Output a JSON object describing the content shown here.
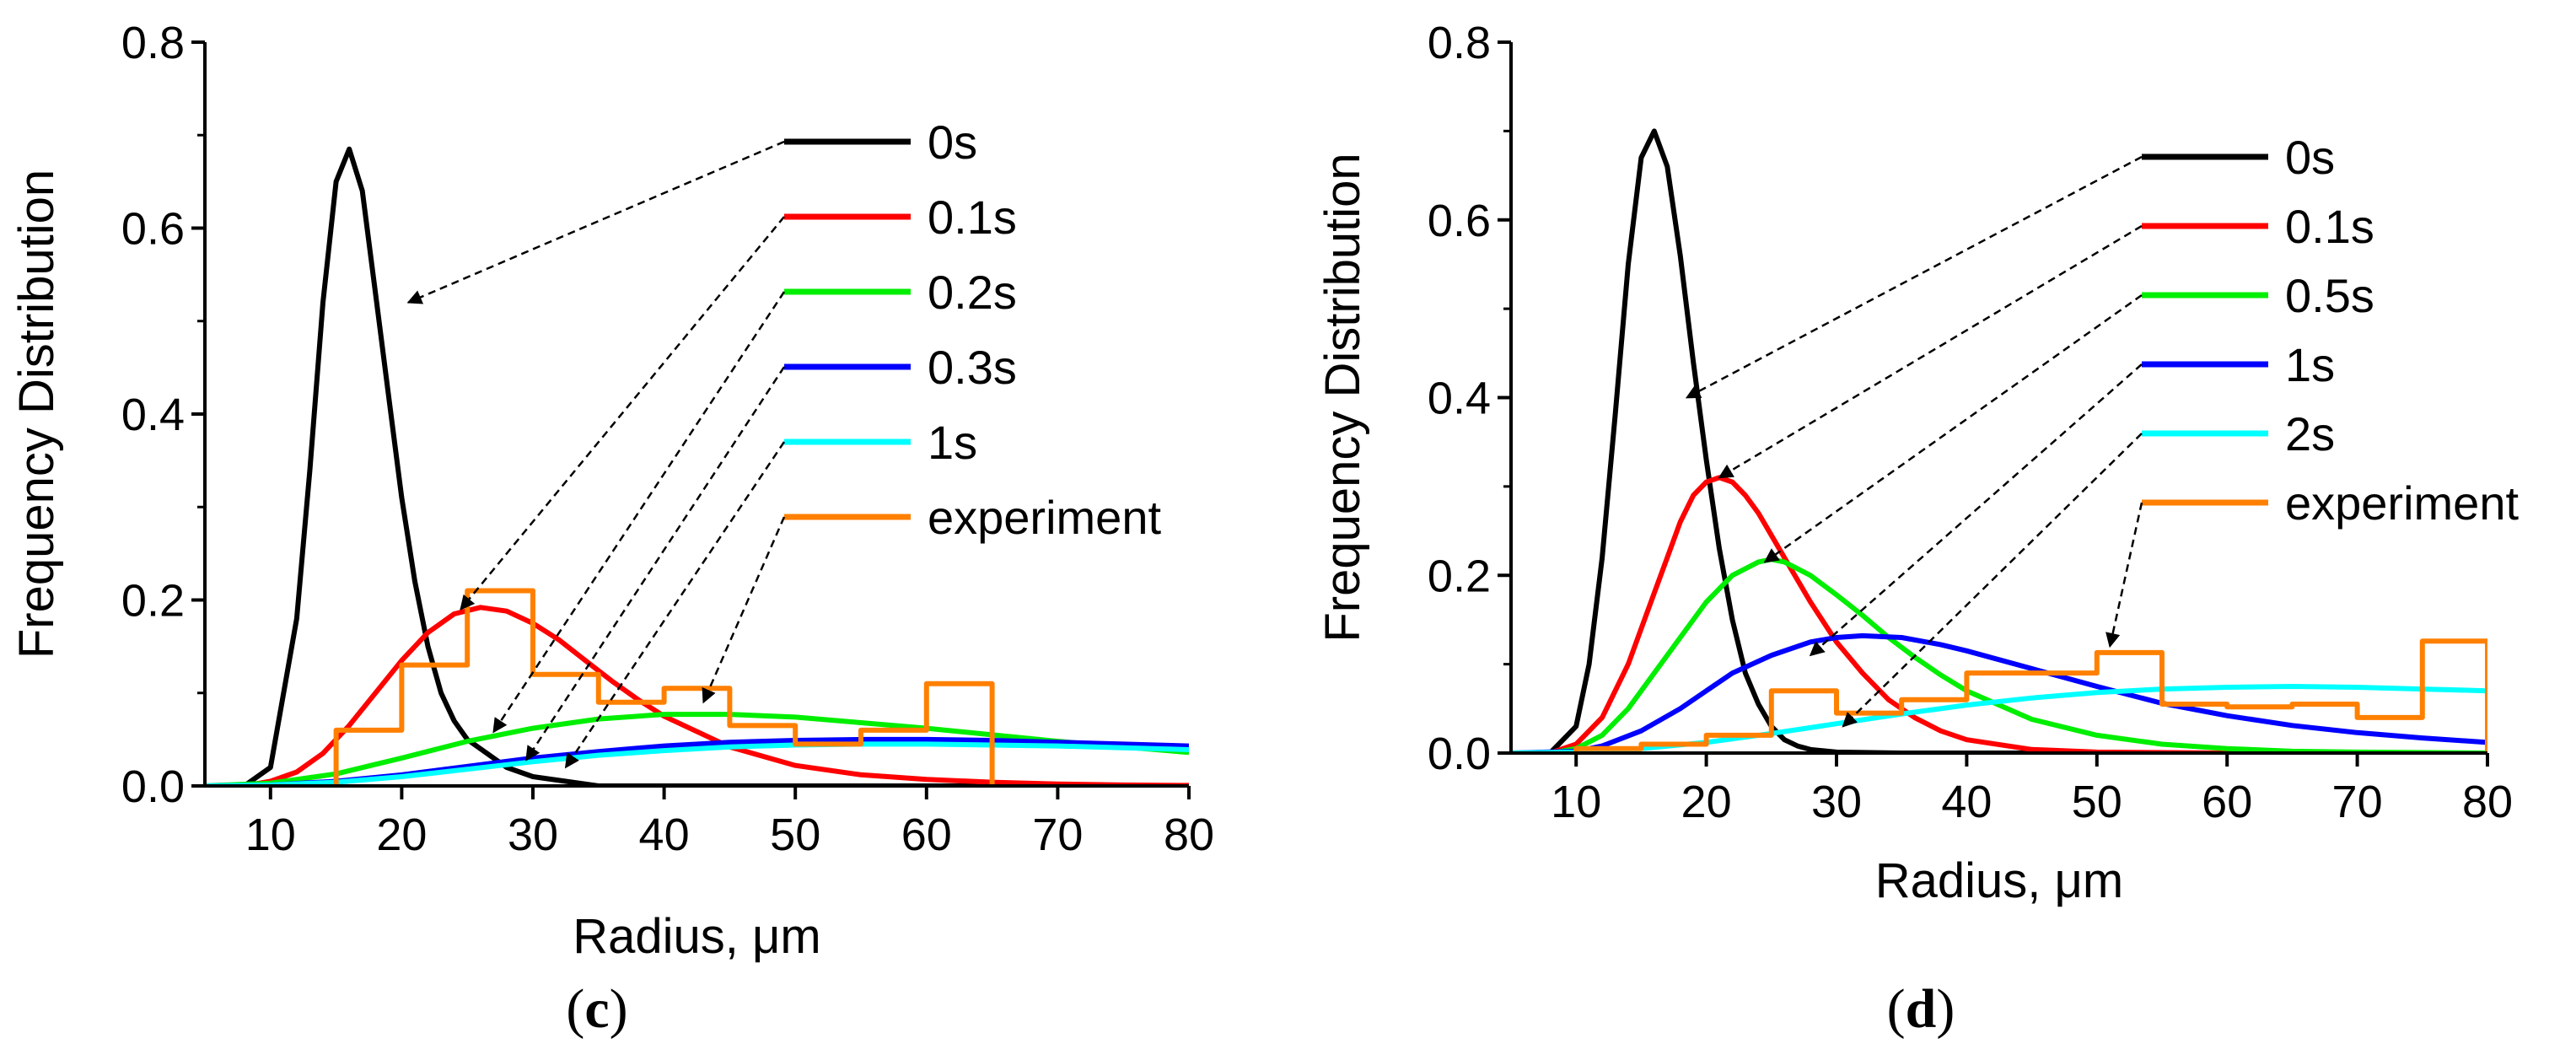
{
  "chart_data": [
    {
      "type": "line",
      "panel_label": "(c)",
      "panel_letter": "c",
      "xlabel": "Radius, μm",
      "ylabel": "Frequency Distribution",
      "xlim": [
        5,
        80
      ],
      "ylim": [
        0,
        0.8
      ],
      "x_ticks": [
        10,
        20,
        30,
        40,
        50,
        60,
        70,
        80
      ],
      "x_tick_labels": [
        "10",
        "20",
        "30",
        "40",
        "50",
        "60",
        "70",
        "80"
      ],
      "y_ticks": [
        0,
        0.2,
        0.4,
        0.6,
        0.8
      ],
      "y_tick_labels": [
        "0.0",
        "0.2",
        "0.4",
        "0.6",
        "0.8"
      ],
      "grid": false,
      "legend_position": "top-right",
      "series": [
        {
          "name": "0s",
          "color": "#000000",
          "x": [
            5,
            8,
            10,
            12,
            13,
            14,
            15,
            16,
            17,
            18,
            19,
            20,
            21,
            22,
            23,
            24,
            25,
            26,
            28,
            30,
            35,
            40,
            50,
            60,
            70,
            80
          ],
          "y": [
            0,
            0,
            0.02,
            0.18,
            0.34,
            0.52,
            0.65,
            0.685,
            0.64,
            0.53,
            0.42,
            0.31,
            0.22,
            0.15,
            0.1,
            0.07,
            0.05,
            0.04,
            0.02,
            0.01,
            0,
            0,
            0,
            0,
            0,
            0
          ],
          "legend_pointer_to": [
            20.5,
            0.52
          ]
        },
        {
          "name": "0.1s",
          "color": "#ff0000",
          "x": [
            5,
            8,
            10,
            12,
            14,
            16,
            18,
            20,
            22,
            24,
            26,
            28,
            30,
            32,
            34,
            36,
            38,
            40,
            45,
            50,
            55,
            60,
            65,
            70,
            75,
            80
          ],
          "y": [
            0,
            0,
            0.005,
            0.015,
            0.035,
            0.065,
            0.1,
            0.135,
            0.165,
            0.185,
            0.192,
            0.188,
            0.175,
            0.157,
            0.135,
            0.113,
            0.093,
            0.075,
            0.042,
            0.022,
            0.012,
            0.007,
            0.004,
            0.002,
            0.001,
            0.0005
          ],
          "legend_pointer_to": [
            24.5,
            0.19
          ]
        },
        {
          "name": "0.2s",
          "color": "#00ee00",
          "x": [
            5,
            10,
            15,
            20,
            25,
            30,
            35,
            40,
            45,
            50,
            55,
            60,
            65,
            70,
            75,
            80
          ],
          "y": [
            0,
            0.003,
            0.013,
            0.03,
            0.048,
            0.062,
            0.072,
            0.077,
            0.077,
            0.074,
            0.068,
            0.062,
            0.055,
            0.048,
            0.042,
            0.036
          ],
          "legend_pointer_to": [
            27,
            0.058
          ]
        },
        {
          "name": "0.3s",
          "color": "#0000ff",
          "x": [
            5,
            10,
            15,
            20,
            25,
            30,
            35,
            40,
            45,
            50,
            55,
            60,
            65,
            70,
            75,
            80
          ],
          "y": [
            0,
            0.001,
            0.005,
            0.012,
            0.021,
            0.03,
            0.037,
            0.043,
            0.047,
            0.049,
            0.05,
            0.05,
            0.049,
            0.047,
            0.045,
            0.043
          ],
          "legend_pointer_to": [
            29.5,
            0.028
          ]
        },
        {
          "name": "1s",
          "color": "#00ffff",
          "x": [
            5,
            10,
            15,
            20,
            25,
            30,
            35,
            40,
            45,
            50,
            55,
            60,
            65,
            70,
            75,
            80
          ],
          "y": [
            0,
            0.001,
            0.004,
            0.01,
            0.018,
            0.026,
            0.033,
            0.038,
            0.042,
            0.044,
            0.045,
            0.045,
            0.044,
            0.043,
            0.041,
            0.039
          ],
          "legend_pointer_to": [
            32.5,
            0.02
          ]
        },
        {
          "name": "experiment",
          "color": "#ff8000",
          "step": true,
          "edges": [
            15,
            20,
            25,
            30,
            35,
            40,
            45,
            50,
            55,
            60,
            65
          ],
          "values": [
            0.06,
            0.13,
            0.21,
            0.12,
            0.09,
            0.105,
            0.065,
            0.045,
            0.06,
            0.11
          ],
          "legend_pointer_to": [
            43,
            0.09
          ]
        }
      ]
    },
    {
      "type": "line",
      "panel_label": "(d)",
      "panel_letter": "d",
      "xlabel": "Radius, μm",
      "ylabel": "Frequency Distribution",
      "xlim": [
        5,
        80
      ],
      "ylim": [
        0,
        0.8
      ],
      "x_ticks": [
        10,
        20,
        30,
        40,
        50,
        60,
        70,
        80
      ],
      "x_tick_labels": [
        "10",
        "20",
        "30",
        "40",
        "50",
        "60",
        "70",
        "80"
      ],
      "y_ticks": [
        0,
        0.2,
        0.4,
        0.6,
        0.8
      ],
      "y_tick_labels": [
        "0.0",
        "0.2",
        "0.4",
        "0.6",
        "0.8"
      ],
      "grid": false,
      "legend_position": "top-right",
      "series": [
        {
          "name": "0s",
          "color": "#000000",
          "x": [
            5,
            8,
            10,
            11,
            12,
            13,
            14,
            15,
            16,
            17,
            18,
            19,
            20,
            21,
            22,
            23,
            24,
            25,
            26,
            27,
            28,
            30,
            35,
            40,
            50,
            60,
            70,
            80
          ],
          "y": [
            0,
            0,
            0.03,
            0.1,
            0.22,
            0.38,
            0.55,
            0.67,
            0.7,
            0.66,
            0.56,
            0.44,
            0.33,
            0.23,
            0.15,
            0.09,
            0.055,
            0.03,
            0.015,
            0.008,
            0.004,
            0.001,
            0,
            0,
            0,
            0,
            0,
            0
          ],
          "legend_pointer_to": [
            18.5,
            0.4
          ]
        },
        {
          "name": "0.1s",
          "color": "#ff0000",
          "x": [
            5,
            8,
            10,
            12,
            14,
            16,
            17,
            18,
            19,
            20,
            21,
            22,
            23,
            24,
            25,
            26,
            28,
            30,
            32,
            34,
            36,
            38,
            40,
            45,
            50,
            60,
            70,
            80
          ],
          "y": [
            0,
            0,
            0.01,
            0.04,
            0.1,
            0.18,
            0.22,
            0.26,
            0.29,
            0.305,
            0.31,
            0.305,
            0.29,
            0.27,
            0.245,
            0.22,
            0.17,
            0.125,
            0.09,
            0.06,
            0.04,
            0.025,
            0.015,
            0.004,
            0.001,
            0,
            0,
            0
          ],
          "legend_pointer_to": [
            21,
            0.31
          ]
        },
        {
          "name": "0.5s",
          "color": "#00ee00",
          "x": [
            5,
            8,
            10,
            12,
            14,
            16,
            18,
            20,
            22,
            24,
            25,
            26,
            28,
            30,
            32,
            34,
            36,
            38,
            40,
            45,
            50,
            55,
            60,
            65,
            70,
            80
          ],
          "y": [
            0,
            0,
            0.005,
            0.02,
            0.05,
            0.09,
            0.13,
            0.17,
            0.2,
            0.215,
            0.218,
            0.215,
            0.2,
            0.178,
            0.155,
            0.13,
            0.108,
            0.088,
            0.07,
            0.038,
            0.02,
            0.01,
            0.005,
            0.002,
            0.001,
            0
          ],
          "legend_pointer_to": [
            24.5,
            0.215
          ]
        },
        {
          "name": "1s",
          "color": "#0000ff",
          "x": [
            5,
            10,
            12,
            15,
            18,
            20,
            22,
            25,
            28,
            30,
            32,
            35,
            38,
            40,
            45,
            50,
            55,
            60,
            65,
            70,
            75,
            80
          ],
          "y": [
            0,
            0.002,
            0.008,
            0.025,
            0.05,
            0.07,
            0.09,
            0.11,
            0.125,
            0.13,
            0.132,
            0.13,
            0.122,
            0.115,
            0.095,
            0.075,
            0.056,
            0.042,
            0.031,
            0.023,
            0.017,
            0.012
          ],
          "legend_pointer_to": [
            28,
            0.11
          ]
        },
        {
          "name": "2s",
          "color": "#00ffff",
          "x": [
            5,
            10,
            15,
            20,
            25,
            30,
            35,
            40,
            45,
            50,
            55,
            60,
            65,
            70,
            75,
            80
          ],
          "y": [
            0,
            0.001,
            0.005,
            0.012,
            0.022,
            0.033,
            0.044,
            0.054,
            0.062,
            0.068,
            0.072,
            0.074,
            0.075,
            0.074,
            0.072,
            0.07
          ],
          "legend_pointer_to": [
            30.5,
            0.03
          ]
        },
        {
          "name": "experiment",
          "color": "#ff8000",
          "step": true,
          "edges": [
            10,
            15,
            20,
            25,
            30,
            35,
            40,
            45,
            50,
            55,
            60,
            65,
            70,
            75,
            80
          ],
          "values": [
            0.005,
            0.01,
            0.02,
            0.07,
            0.045,
            0.06,
            0.09,
            0.09,
            0.113,
            0.055,
            0.052,
            0.055,
            0.04,
            0.126
          ],
          "legend_pointer_to": [
            51,
            0.12
          ]
        }
      ]
    }
  ]
}
